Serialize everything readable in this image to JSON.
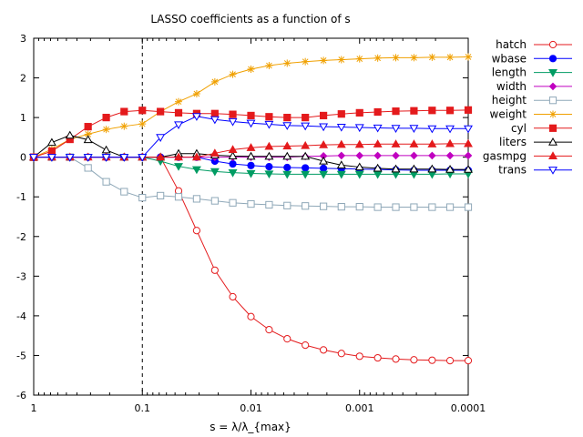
{
  "chart_data": {
    "type": "line",
    "title": "LASSO coefficients as a function of s",
    "xlabel": "s = λ/λ_{max}",
    "ylabel": "",
    "x_scale": "log",
    "x_reversed": true,
    "xlim": [
      1,
      0.0001
    ],
    "ylim": [
      -6,
      3
    ],
    "x_ticks": [
      {
        "value": 1,
        "label": "1"
      },
      {
        "value": 0.1,
        "label": "0.1"
      },
      {
        "value": 0.01,
        "label": "0.01"
      },
      {
        "value": 0.001,
        "label": "0.001"
      },
      {
        "value": 0.0001,
        "label": "0.0001"
      }
    ],
    "y_ticks": [
      {
        "value": 3,
        "label": "3"
      },
      {
        "value": 2,
        "label": "2"
      },
      {
        "value": 1,
        "label": "1"
      },
      {
        "value": 0,
        "label": "0"
      },
      {
        "value": -1,
        "label": "-1"
      },
      {
        "value": -2,
        "label": "-2"
      },
      {
        "value": -3,
        "label": "-3"
      },
      {
        "value": -4,
        "label": "-4"
      },
      {
        "value": -5,
        "label": "-5"
      },
      {
        "value": -6,
        "label": "-6"
      }
    ],
    "vertical_line": {
      "x": 0.1,
      "style": "dashed",
      "color": "#000000"
    },
    "grid": false,
    "legend_position": "right-outside",
    "x": [
      1,
      0.681,
      0.464,
      0.316,
      0.215,
      0.147,
      0.1,
      0.0681,
      0.0464,
      0.0316,
      0.0215,
      0.0147,
      0.01,
      0.00681,
      0.00464,
      0.00316,
      0.00215,
      0.00147,
      0.001,
      0.000681,
      0.000464,
      0.000316,
      0.000215,
      0.000147,
      0.0001
    ],
    "series": [
      {
        "name": "hatch",
        "color": "#e41a1c",
        "marker": "circle-open",
        "values": [
          0,
          0,
          0,
          0,
          0,
          0,
          0,
          0,
          -0.85,
          -1.85,
          -2.85,
          -3.52,
          -4.02,
          -4.35,
          -4.58,
          -4.74,
          -4.86,
          -4.95,
          -5.02,
          -5.06,
          -5.09,
          -5.11,
          -5.12,
          -5.13,
          -5.13
        ]
      },
      {
        "name": "wbase",
        "color": "#0000ff",
        "marker": "circle-filled",
        "values": [
          0,
          0,
          0,
          0,
          0,
          0,
          0,
          0,
          0,
          0,
          -0.1,
          -0.17,
          -0.21,
          -0.24,
          -0.26,
          -0.27,
          -0.28,
          -0.29,
          -0.3,
          -0.31,
          -0.32,
          -0.33,
          -0.33,
          -0.33,
          -0.33
        ]
      },
      {
        "name": "length",
        "color": "#009c63",
        "marker": "triangle-down-filled",
        "values": [
          0,
          0,
          0,
          0,
          0,
          0,
          0,
          -0.1,
          -0.23,
          -0.31,
          -0.36,
          -0.39,
          -0.41,
          -0.42,
          -0.43,
          -0.43,
          -0.43,
          -0.43,
          -0.43,
          -0.43,
          -0.43,
          -0.43,
          -0.43,
          -0.42,
          -0.42
        ]
      },
      {
        "name": "width",
        "color": "#c000c0",
        "marker": "diamond-filled",
        "values": [
          0,
          0,
          0,
          0,
          0,
          0,
          0,
          0,
          0,
          0,
          0,
          0,
          0,
          0,
          0,
          0.02,
          0.03,
          0.04,
          0.04,
          0.04,
          0.04,
          0.04,
          0.04,
          0.04,
          0.04
        ]
      },
      {
        "name": "height",
        "color": "#8fa8b8",
        "marker": "square-open",
        "values": [
          0,
          0,
          0,
          -0.27,
          -0.62,
          -0.87,
          -1.02,
          -0.97,
          -1.0,
          -1.05,
          -1.1,
          -1.15,
          -1.18,
          -1.2,
          -1.22,
          -1.23,
          -1.24,
          -1.25,
          -1.25,
          -1.26,
          -1.26,
          -1.26,
          -1.26,
          -1.26,
          -1.26
        ]
      },
      {
        "name": "weight",
        "color": "#f0a000",
        "marker": "star",
        "values": [
          0,
          0.2,
          0.45,
          0.58,
          0.7,
          0.78,
          0.84,
          1.15,
          1.4,
          1.6,
          1.9,
          2.09,
          2.22,
          2.31,
          2.37,
          2.41,
          2.44,
          2.46,
          2.48,
          2.5,
          2.51,
          2.51,
          2.52,
          2.52,
          2.53
        ]
      },
      {
        "name": "cyl",
        "color": "#e41a1c",
        "marker": "square-filled",
        "values": [
          0,
          0.15,
          0.45,
          0.77,
          1.0,
          1.15,
          1.18,
          1.15,
          1.12,
          1.1,
          1.1,
          1.08,
          1.05,
          1.02,
          1.0,
          1.0,
          1.05,
          1.09,
          1.12,
          1.14,
          1.16,
          1.17,
          1.18,
          1.18,
          1.19
        ]
      },
      {
        "name": "liters",
        "color": "#000000",
        "marker": "triangle-up-open",
        "values": [
          0,
          0.37,
          0.55,
          0.44,
          0.18,
          0,
          0,
          0,
          0.09,
          0.09,
          0.05,
          0.03,
          0.02,
          0.02,
          0.02,
          0.02,
          -0.1,
          -0.2,
          -0.25,
          -0.28,
          -0.3,
          -0.3,
          -0.3,
          -0.31,
          -0.31
        ]
      },
      {
        "name": "gasmpg",
        "color": "#e41a1c",
        "marker": "triangle-up-filled",
        "values": [
          0,
          0,
          0,
          0,
          0,
          0,
          0,
          0,
          0,
          0,
          0.1,
          0.19,
          0.24,
          0.27,
          0.28,
          0.29,
          0.31,
          0.32,
          0.32,
          0.33,
          0.33,
          0.33,
          0.33,
          0.34,
          0.34
        ]
      },
      {
        "name": "trans",
        "color": "#0000ff",
        "marker": "triangle-down-open",
        "values": [
          0,
          0,
          0,
          0,
          0,
          0,
          0,
          0.5,
          0.82,
          1.03,
          0.95,
          0.9,
          0.86,
          0.83,
          0.8,
          0.79,
          0.77,
          0.76,
          0.75,
          0.74,
          0.73,
          0.73,
          0.72,
          0.72,
          0.72
        ]
      }
    ]
  }
}
